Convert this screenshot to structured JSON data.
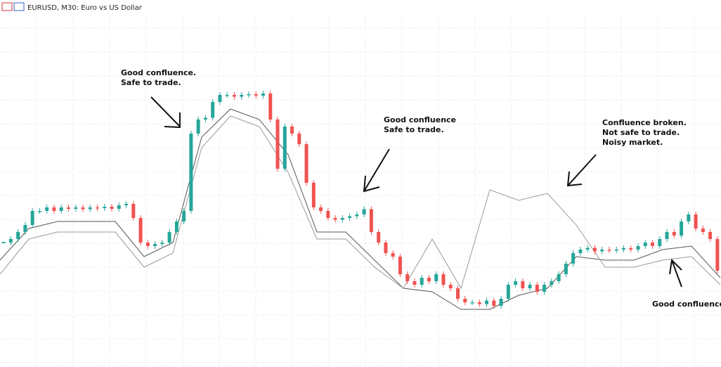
{
  "chart_data": {
    "type": "candlestick",
    "title": "EURUSD, M30:  Euro vs US Dollar",
    "ylim": [
      0,
      100
    ],
    "close": [
      35,
      36,
      38,
      40,
      44,
      44,
      45,
      44,
      45,
      44.6,
      45,
      44.5,
      45,
      44.8,
      45.2,
      44.6,
      45.6,
      46,
      42,
      35,
      34,
      34.6,
      35,
      38,
      41,
      44,
      66,
      70,
      70.5,
      75,
      77,
      77,
      76.5,
      77,
      77.2,
      76.8,
      77.4,
      70,
      56,
      68,
      66,
      63,
      52,
      45,
      44,
      42,
      41.5,
      42,
      42.5,
      43,
      44.5,
      38,
      35,
      32,
      31,
      26,
      24,
      23,
      25,
      24,
      26,
      23,
      22,
      19,
      18,
      18,
      17.5,
      18.5,
      17,
      19,
      23,
      24,
      22,
      23,
      21,
      23,
      24,
      26,
      29,
      32,
      33,
      33.5,
      32.5,
      33,
      32.8,
      33,
      33.4,
      33,
      34,
      35,
      34,
      36,
      38,
      37,
      41,
      43,
      39,
      38,
      36,
      27
    ],
    "up_color": "#26a69a",
    "down_color": "#ef5350",
    "bands": [
      {
        "color": "#555",
        "values": [
          30,
          39,
          41,
          41,
          41,
          31,
          35,
          65,
          73,
          70,
          60,
          38,
          38,
          30,
          22,
          21,
          16,
          16,
          20,
          22,
          31,
          30,
          30,
          33,
          34,
          25
        ]
      },
      {
        "color": "#999",
        "values": [
          26,
          36,
          38,
          38,
          38,
          28,
          32,
          62,
          71,
          68,
          55,
          36,
          36,
          28,
          22,
          36,
          22,
          50,
          47,
          49,
          40,
          28,
          28,
          30,
          31,
          23
        ]
      }
    ],
    "annotations": [
      {
        "lines": [
          "Good confluence.",
          "Safe to trade."
        ]
      },
      {
        "lines": [
          "Good confluence",
          "Safe to trade."
        ]
      },
      {
        "lines": [
          "Confluence broken.",
          "Not safe to trade.",
          "Noisy market."
        ]
      },
      {
        "lines": [
          "Good confluence."
        ]
      }
    ]
  }
}
